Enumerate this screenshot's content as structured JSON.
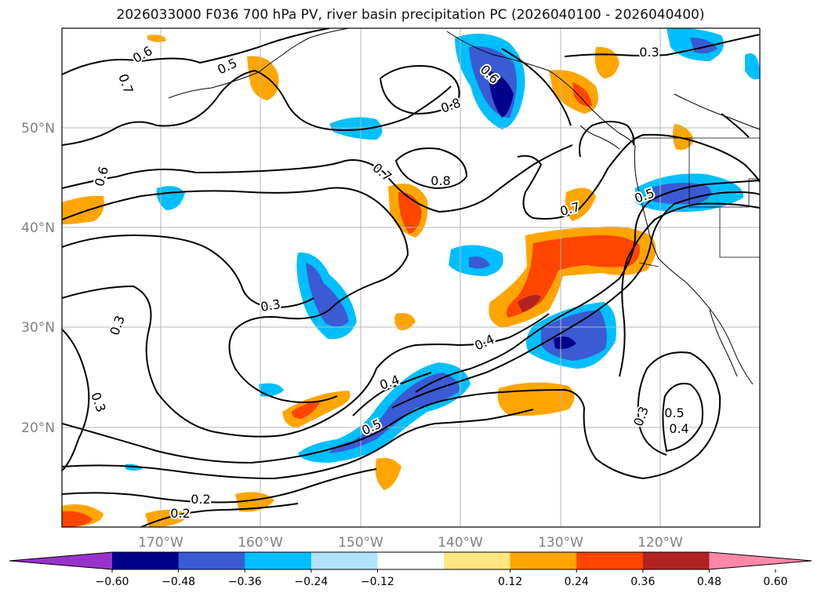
{
  "title": "2026033000 F036 700 hPa PV, river basin precipitation PC (2026040100 - 2026040400)",
  "map": {
    "lat_labels": [
      "50°N",
      "40°N",
      "30°N",
      "20°N"
    ],
    "lon_labels": [
      "170°W",
      "160°W",
      "150°W",
      "140°W",
      "130°W",
      "120°W"
    ],
    "contour_labels": [
      "0.6",
      "0.5",
      "0.7",
      "0.6",
      "0.8",
      "0.7",
      "0.8",
      "0.6",
      "0.3",
      "0.5",
      "0.7",
      "0.3",
      "0.4",
      "0.4",
      "0.5",
      "0.3",
      "0.3",
      "0.2",
      "0.2",
      "0.5",
      "0.4",
      "0.3"
    ],
    "grid": true
  },
  "colorbar": {
    "ticks": [
      "−0.60",
      "−0.48",
      "−0.36",
      "−0.24",
      "−0.12",
      "0.12",
      "0.24",
      "0.36",
      "0.48",
      "0.60"
    ],
    "colors": [
      "#9932cc",
      "#00008b",
      "#3a5bd4",
      "#00bfff",
      "#b0e2ff",
      "#ffffff",
      "#ffe680",
      "#ffa500",
      "#ff4500",
      "#b22222",
      "#ff88aa"
    ],
    "extend": "both"
  },
  "shading_colors": {
    "neg_strong": "#00008b",
    "neg_mid": "#3a5bd4",
    "neg_weak": "#00bfff",
    "neg_faint": "#b0e2ff",
    "pos_faint": "#ffe680",
    "pos_weak": "#ffa500",
    "pos_mid": "#ff4500",
    "pos_strong": "#b22222"
  }
}
